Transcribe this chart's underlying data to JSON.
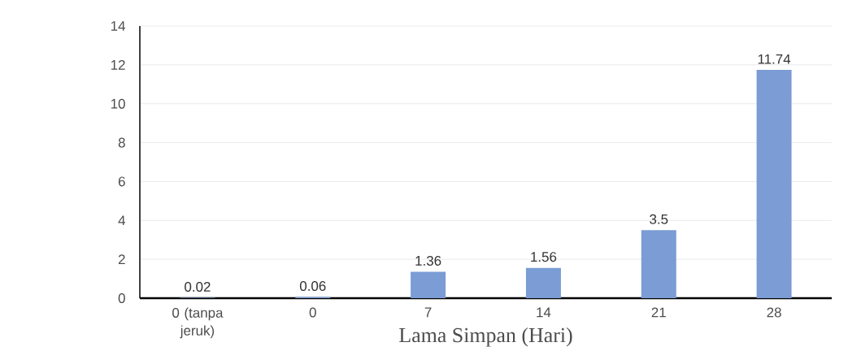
{
  "chart_data": {
    "type": "bar",
    "xlabel": "Lama Simpan (Hari)",
    "categories": [
      "0 (tanpa jeruk)",
      "0",
      "7",
      "14",
      "21",
      "28"
    ],
    "values": [
      0.02,
      0.06,
      1.36,
      1.56,
      3.5,
      11.74
    ],
    "color": "#7b9cd4",
    "ylim": [
      0,
      14
    ],
    "yticks": [
      0,
      2,
      4,
      6,
      8,
      10,
      12,
      14
    ],
    "grid": "y",
    "data_labels": true
  }
}
